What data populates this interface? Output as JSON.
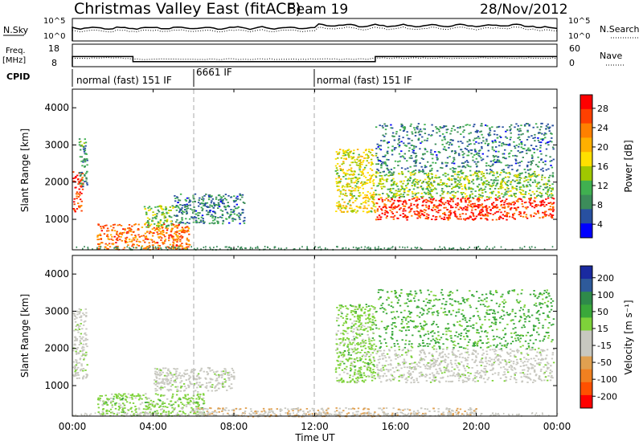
{
  "header": {
    "station": "Christmas Valley East (fitACF)",
    "beam": "Beam 19",
    "date": "28/Nov/2012"
  },
  "strips": {
    "nsky_label": "N.Sky",
    "nsky_ticks": [
      "10^5",
      "10^0"
    ],
    "nsearch_label": "N.Search",
    "nsearch_ticks": [
      "10^5",
      "10^0"
    ],
    "freq_label_1": "Freq.",
    "freq_label_2": "[MHz]",
    "freq_ticks": [
      "18",
      "8"
    ],
    "nave_label": "Nave",
    "nave_ticks": [
      "60",
      "0"
    ],
    "cpid_label": "CPID",
    "cpid_segments": [
      {
        "label": "normal (fast) 151 IF",
        "start_h": 0
      },
      {
        "label": "6661 IF",
        "start_h": 6
      },
      {
        "label": "normal (fast) 151 IF",
        "start_h": 12
      }
    ],
    "freq_series": {
      "x_hours": [
        0,
        3,
        3,
        15,
        15,
        24
      ],
      "y_mhz": [
        12.5,
        12.5,
        10.2,
        10.2,
        12.5,
        12.5
      ]
    }
  },
  "axes": {
    "xlabel": "Time UT",
    "ylabel": "Slant Range [km]",
    "x_ticks": [
      "00:00",
      "04:00",
      "08:00",
      "12:00",
      "16:00",
      "20:00",
      "00:00"
    ],
    "y_ticks": [
      "1000",
      "2000",
      "3000",
      "4000"
    ],
    "xlim_hours": [
      0,
      24
    ],
    "ylim_km": [
      180,
      4500
    ]
  },
  "colorbars": {
    "power": {
      "label": "Power [dB]",
      "ticks": [
        "28",
        "24",
        "20",
        "16",
        "12",
        "8",
        "4"
      ],
      "colors": [
        "#ff0000",
        "#ff4000",
        "#ff8000",
        "#ffb000",
        "#ffe000",
        "#a0c800",
        "#40b050",
        "#3c8c5a",
        "#2850a0",
        "#0000ff"
      ]
    },
    "velocity": {
      "label": "Velocity [m s⁻¹]",
      "ticks": [
        "200",
        "100",
        "50",
        "15",
        "-15",
        "-50",
        "-100",
        "-200"
      ],
      "colors": [
        "#1a2aa0",
        "#2e5a9a",
        "#2e8a4a",
        "#3aa83a",
        "#7ed23a",
        "#c8c8c0",
        "#c8c8c0",
        "#e0a050",
        "#f08020",
        "#ff5000",
        "#ff0000"
      ]
    }
  },
  "chart_data": [
    {
      "type": "heatmap",
      "title": "Power [dB]",
      "xlabel": "Time UT",
      "ylabel": "Slant Range [km]",
      "xlim": [
        0,
        24
      ],
      "ylim": [
        180,
        4500
      ],
      "features": [
        {
          "h0": 0.0,
          "h1": 0.5,
          "r0": 1200,
          "r1": 2300,
          "db": 28
        },
        {
          "h0": 0.3,
          "h1": 0.7,
          "r0": 1900,
          "r1": 3200,
          "db": 8
        },
        {
          "h0": 1.2,
          "h1": 5.8,
          "r0": 200,
          "r1": 900,
          "db": 24
        },
        {
          "h0": 3.5,
          "h1": 5.0,
          "r0": 800,
          "r1": 1400,
          "db": 12
        },
        {
          "h0": 5.0,
          "h1": 8.5,
          "r0": 900,
          "r1": 1700,
          "db": 6
        },
        {
          "h0": 13.0,
          "h1": 15.0,
          "r0": 1200,
          "r1": 2900,
          "db": 16
        },
        {
          "h0": 15.0,
          "h1": 23.8,
          "r0": 1000,
          "r1": 1600,
          "db": 28
        },
        {
          "h0": 15.0,
          "h1": 23.8,
          "r0": 1600,
          "r1": 2300,
          "db": 12
        },
        {
          "h0": 15.0,
          "h1": 23.8,
          "r0": 2300,
          "r1": 3600,
          "db": 6
        }
      ]
    },
    {
      "type": "heatmap",
      "title": "Velocity [m s⁻¹]",
      "xlabel": "Time UT",
      "ylabel": "Slant Range [km]",
      "xlim": [
        0,
        24
      ],
      "ylim": [
        180,
        4500
      ],
      "features": [
        {
          "h0": 0.0,
          "h1": 0.7,
          "r0": 1200,
          "r1": 3100,
          "v": 0
        },
        {
          "h0": 1.2,
          "h1": 6.5,
          "r0": 200,
          "r1": 800,
          "v": 40
        },
        {
          "h0": 4.0,
          "h1": 8.0,
          "r0": 850,
          "r1": 1500,
          "v": 0
        },
        {
          "h0": 6.0,
          "h1": 20.0,
          "r0": 180,
          "r1": 420,
          "v": -60
        },
        {
          "h0": 13.0,
          "h1": 15.0,
          "r0": 1100,
          "r1": 3200,
          "v": 40
        },
        {
          "h0": 15.0,
          "h1": 23.8,
          "r0": 1100,
          "r1": 2000,
          "v": 0
        },
        {
          "h0": 15.0,
          "h1": 23.8,
          "r0": 2000,
          "r1": 3600,
          "v": 80
        }
      ]
    }
  ]
}
